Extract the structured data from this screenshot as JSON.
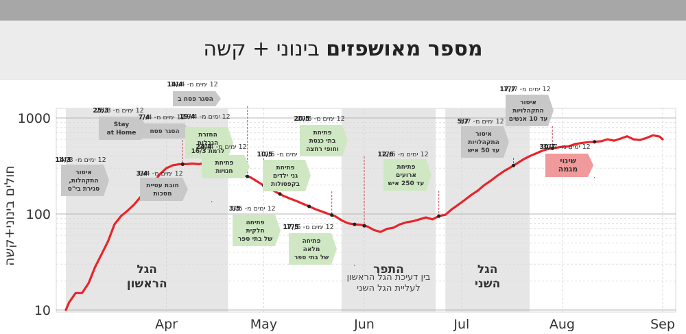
{
  "title": {
    "bold": "מספר מאושפזים",
    "rest": "בינוני + קשה"
  },
  "colors": {
    "line": "#e8242a",
    "gray_box": "#c8c8c8",
    "green_box": "#cfe8c3",
    "red_box": "#f19a9c",
    "band": "#e6e6e6"
  },
  "chart_data": {
    "type": "line",
    "xlabel": "",
    "ylabel": "חולים בינוני+קשה",
    "yscale": "log",
    "ylim": [
      10,
      1000
    ],
    "xlim": [
      "2020-03-01",
      "2020-09-01"
    ],
    "yticks": [
      "10",
      "100",
      "1000"
    ],
    "xticks": [
      {
        "date": "2020-04-01",
        "label": "Apr"
      },
      {
        "date": "2020-05-01",
        "label": "May"
      },
      {
        "date": "2020-06-01",
        "label": "Jun"
      },
      {
        "date": "2020-07-01",
        "label": "Jul"
      },
      {
        "date": "2020-08-01",
        "label": "Aug"
      },
      {
        "date": "2020-09-01",
        "label": "Sep"
      }
    ],
    "series": [
      {
        "name": "",
        "points": [
          [
            "2020-03-01",
            10
          ],
          [
            "2020-03-02",
            12
          ],
          [
            "2020-03-04",
            15
          ],
          [
            "2020-03-06",
            15
          ],
          [
            "2020-03-08",
            19
          ],
          [
            "2020-03-10",
            28
          ],
          [
            "2020-03-12",
            38
          ],
          [
            "2020-03-14",
            52
          ],
          [
            "2020-03-16",
            78
          ],
          [
            "2020-03-18",
            95
          ],
          [
            "2020-03-20",
            108
          ],
          [
            "2020-03-22",
            125
          ],
          [
            "2020-03-24",
            150
          ],
          [
            "2020-03-26",
            175
          ],
          [
            "2020-03-28",
            210
          ],
          [
            "2020-03-30",
            260
          ],
          [
            "2020-04-01",
            300
          ],
          [
            "2020-04-03",
            322
          ],
          [
            "2020-04-05",
            330
          ],
          [
            "2020-04-07",
            330
          ],
          [
            "2020-04-09",
            335
          ],
          [
            "2020-04-11",
            330
          ],
          [
            "2020-04-13",
            340
          ],
          [
            "2020-04-15",
            342
          ],
          [
            "2020-04-17",
            336
          ],
          [
            "2020-04-19",
            310
          ],
          [
            "2020-04-21",
            285
          ],
          [
            "2020-04-23",
            268
          ],
          [
            "2020-04-25",
            252
          ],
          [
            "2020-04-27",
            240
          ],
          [
            "2020-04-29",
            218
          ],
          [
            "2020-05-01",
            198
          ],
          [
            "2020-05-03",
            183
          ],
          [
            "2020-05-05",
            168
          ],
          [
            "2020-05-07",
            155
          ],
          [
            "2020-05-09",
            145
          ],
          [
            "2020-05-11",
            137
          ],
          [
            "2020-05-13",
            128
          ],
          [
            "2020-05-15",
            120
          ],
          [
            "2020-05-17",
            112
          ],
          [
            "2020-05-19",
            106
          ],
          [
            "2020-05-21",
            100
          ],
          [
            "2020-05-23",
            95
          ],
          [
            "2020-05-25",
            86
          ],
          [
            "2020-05-27",
            80
          ],
          [
            "2020-05-29",
            78
          ],
          [
            "2020-05-31",
            77
          ],
          [
            "2020-06-02",
            74
          ],
          [
            "2020-06-04",
            68
          ],
          [
            "2020-06-06",
            65
          ],
          [
            "2020-06-08",
            70
          ],
          [
            "2020-06-10",
            72
          ],
          [
            "2020-06-12",
            78
          ],
          [
            "2020-06-14",
            82
          ],
          [
            "2020-06-16",
            84
          ],
          [
            "2020-06-18",
            88
          ],
          [
            "2020-06-20",
            92
          ],
          [
            "2020-06-22",
            88
          ],
          [
            "2020-06-24",
            95
          ],
          [
            "2020-06-26",
            98
          ],
          [
            "2020-06-28",
            112
          ],
          [
            "2020-06-30",
            125
          ],
          [
            "2020-07-02",
            140
          ],
          [
            "2020-07-04",
            158
          ],
          [
            "2020-07-06",
            175
          ],
          [
            "2020-07-08",
            200
          ],
          [
            "2020-07-10",
            222
          ],
          [
            "2020-07-12",
            250
          ],
          [
            "2020-07-14",
            278
          ],
          [
            "2020-07-16",
            305
          ],
          [
            "2020-07-18",
            335
          ],
          [
            "2020-07-20",
            370
          ],
          [
            "2020-07-22",
            400
          ],
          [
            "2020-07-24",
            428
          ],
          [
            "2020-07-26",
            458
          ],
          [
            "2020-07-28",
            478
          ],
          [
            "2020-07-30",
            488
          ],
          [
            "2020-08-01",
            500
          ],
          [
            "2020-08-03",
            505
          ],
          [
            "2020-08-05",
            535
          ],
          [
            "2020-08-07",
            548
          ],
          [
            "2020-08-09",
            560
          ],
          [
            "2020-08-11",
            565
          ],
          [
            "2020-08-13",
            572
          ],
          [
            "2020-08-15",
            600
          ],
          [
            "2020-08-17",
            580
          ],
          [
            "2020-08-19",
            610
          ],
          [
            "2020-08-21",
            645
          ],
          [
            "2020-08-23",
            600
          ],
          [
            "2020-08-25",
            590
          ],
          [
            "2020-08-27",
            620
          ],
          [
            "2020-08-29",
            660
          ],
          [
            "2020-08-31",
            640
          ],
          [
            "2020-09-01",
            600
          ]
        ]
      }
    ],
    "bands": [
      {
        "start": "2020-03-01",
        "end": "2020-04-20",
        "label": [
          "הגל",
          "הראשון"
        ]
      },
      {
        "start": "2020-05-25",
        "end": "2020-06-23",
        "label": [
          "התפר"
        ],
        "sublabel": [
          "בין דעיכת הגל הראשון",
          "לעליית הגל השני"
        ]
      },
      {
        "start": "2020-06-26",
        "end": "2020-07-22",
        "label": [
          "הגל",
          "השני"
        ]
      }
    ],
    "events": [
      {
        "date": "14/3",
        "after": "12 ימים מ-",
        "color": "gray",
        "lines": [
          "איסור",
          "התקהלות,",
          "סגירת בי\"ס"
        ]
      },
      {
        "date": "25/3",
        "after": "12 ימים מ-",
        "color": "gray",
        "lines": [
          "Stay",
          "at Home"
        ]
      },
      {
        "date": "3/4",
        "after": "12 ימים מ-",
        "color": "gray",
        "lines": [
          "חובת עטיית",
          "מסכות"
        ]
      },
      {
        "date": "7/4",
        "after": "12 ימים מ-",
        "color": "gray",
        "lines": [
          "הסגר פסח"
        ]
      },
      {
        "date": "14/4",
        "after": "12 ימים מ-",
        "color": "gray",
        "lines": [
          "הסגר פסח ב"
        ]
      },
      {
        "date": "19/4",
        "after": "12 ימים מ-",
        "color": "green",
        "lines": [
          "החזרת",
          "הגבלות",
          "לרמת 16/3"
        ]
      },
      {
        "date": "24/4",
        "after": "12 ימים מ-",
        "color": "green",
        "lines": [
          "פתיחת",
          "חנויות"
        ]
      },
      {
        "date": "3/5",
        "after": "12 ימים מ-",
        "color": "green",
        "lines": [
          "פתיחה",
          "חלקית",
          "של בתי ספר"
        ]
      },
      {
        "date": "10/5",
        "after": "12 ימים מ-",
        "color": "green",
        "lines": [
          "פתיחת",
          "גני ילדים",
          "בקפסולות"
        ]
      },
      {
        "date": "17/5",
        "after": "12 ימים מ-",
        "color": "green",
        "lines": [
          "פתיחה",
          "מלאה",
          "של בתי ספר"
        ]
      },
      {
        "date": "20/5",
        "after": "12 ימים מ-",
        "color": "green",
        "lines": [
          "פתיחת",
          "בתי כנסת",
          "וחופי רחצה"
        ]
      },
      {
        "date": "12/6",
        "after": "12 ימים מ-",
        "color": "green",
        "lines": [
          "פתיחת",
          "ארועים",
          "עד 250 איש"
        ]
      },
      {
        "date": "5/7",
        "after": "12 ימים מ-",
        "color": "gray",
        "lines": [
          "איסור",
          "התקהלויות",
          "עד 50 איש"
        ]
      },
      {
        "date": "17/7",
        "after": "12 ימים מ-",
        "color": "gray",
        "lines": [
          "איסור",
          "התקהלויות",
          "עד 10 אנשים"
        ]
      },
      {
        "date": "30/7",
        "after": "12 ימים מ-",
        "color": "red",
        "lines": [
          "שינוי",
          "מגמה"
        ]
      }
    ]
  }
}
